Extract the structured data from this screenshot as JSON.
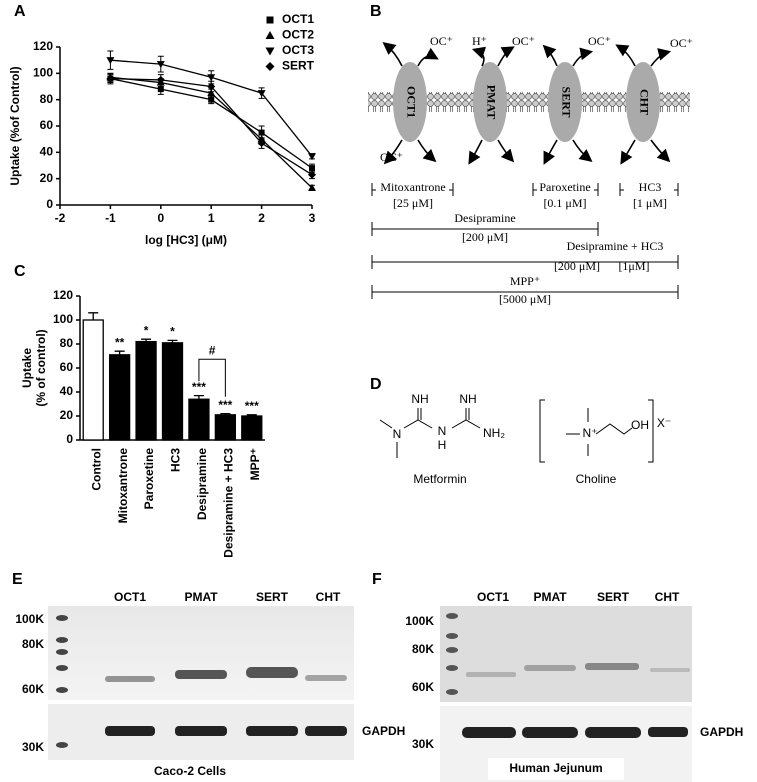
{
  "chart_data": [
    {
      "type": "line",
      "panel": "A",
      "xlabel": "log [HC3] (μM)",
      "ylabel": "Uptake (%of Control)",
      "x": [
        -1,
        0,
        1,
        2,
        3
      ],
      "xlim": [
        -2,
        3
      ],
      "xticks": [
        -2,
        -1,
        0,
        1,
        2,
        3
      ],
      "ylim": [
        0,
        120
      ],
      "yticks": [
        0,
        20,
        40,
        60,
        80,
        100,
        120
      ],
      "legend": "upper right",
      "series": [
        {
          "name": "OCT1",
          "marker": "square",
          "color": "#000000",
          "values": [
            96,
            88,
            80,
            55,
            28
          ],
          "errors": [
            3,
            4,
            3,
            5,
            3
          ]
        },
        {
          "name": "OCT2",
          "marker": "triangle-up",
          "color": "#000000",
          "values": [
            97,
            93,
            85,
            50,
            13
          ],
          "errors": [
            3,
            3,
            3,
            4,
            2
          ]
        },
        {
          "name": "OCT3",
          "marker": "triangle-down",
          "color": "#000000",
          "values": [
            110,
            107,
            97,
            85,
            37
          ],
          "errors": [
            7,
            6,
            5,
            4,
            2
          ]
        },
        {
          "name": "SERT",
          "marker": "diamond",
          "color": "#000000",
          "values": [
            96,
            95,
            90,
            47,
            23
          ],
          "errors": [
            4,
            4,
            4,
            4,
            3
          ]
        }
      ]
    },
    {
      "type": "bar",
      "panel": "C",
      "ylabel": [
        "Uptake",
        "(% of control)"
      ],
      "categories": [
        "Control",
        "Mitoxantrone",
        "Paroxetine",
        "HC3",
        "Desipramine",
        "Desipramine + HC3",
        "MPP⁺"
      ],
      "values": [
        100,
        71,
        82,
        81,
        34,
        21,
        20
      ],
      "errors": [
        6,
        3,
        2,
        2,
        3,
        1,
        1
      ],
      "annotations": [
        null,
        "**",
        "*",
        "*",
        "***",
        "***",
        "***"
      ],
      "colors": [
        "#ffffff",
        "#000000",
        "#000000",
        "#000000",
        "#000000",
        "#000000",
        "#000000"
      ],
      "bracket": {
        "label": "#",
        "between": [
          "Desipramine",
          "Desipramine + HC3"
        ]
      },
      "ylim": [
        0,
        120
      ],
      "yticks": [
        0,
        20,
        40,
        60,
        80,
        100,
        120
      ]
    }
  ],
  "diagram": {
    "panel": "B",
    "transporters": [
      "OCT1",
      "PMAT",
      "SERT",
      "CHT"
    ],
    "ions": [
      "OC⁺",
      "H⁺",
      "OC⁺",
      "OC⁺",
      "OC⁺",
      "OC⁺"
    ],
    "inhibitors": [
      {
        "name": "Mitoxantrone",
        "doses": [
          "[25 μM]"
        ]
      },
      {
        "name": "Paroxetine",
        "doses": [
          "[0.1 μM]"
        ]
      },
      {
        "name": "HC3",
        "doses": [
          "[1 μM]"
        ]
      },
      {
        "name": "Desipramine",
        "doses": [
          "[200 μM]"
        ]
      },
      {
        "name": "Desipramine + HC3",
        "doses": [
          "[200 μM]",
          "[1μM]"
        ]
      },
      {
        "name": "MPP⁺",
        "doses": [
          "[5000 μM]"
        ]
      }
    ]
  },
  "structures": {
    "panel": "D",
    "molecules": [
      {
        "name": "Metformin",
        "atoms": [
          "NH",
          "NH",
          "N",
          "N",
          "H",
          "NH₂"
        ]
      },
      {
        "name": "Choline",
        "atoms": [
          "N⁺",
          "OH",
          "X⁻"
        ]
      }
    ]
  },
  "blots": [
    {
      "panel": "E",
      "lanes": [
        "OCT1",
        "PMAT",
        "SERT",
        "CHT"
      ],
      "markers": [
        "100K",
        "80K",
        "60K",
        "30K"
      ],
      "loading_control": "GAPDH",
      "sample": "Caco-2 Cells"
    },
    {
      "panel": "F",
      "lanes": [
        "OCT1",
        "PMAT",
        "SERT",
        "CHT"
      ],
      "markers": [
        "100K",
        "80K",
        "60K",
        "30K"
      ],
      "loading_control": "GAPDH",
      "sample": "Human Jejunum"
    }
  ]
}
